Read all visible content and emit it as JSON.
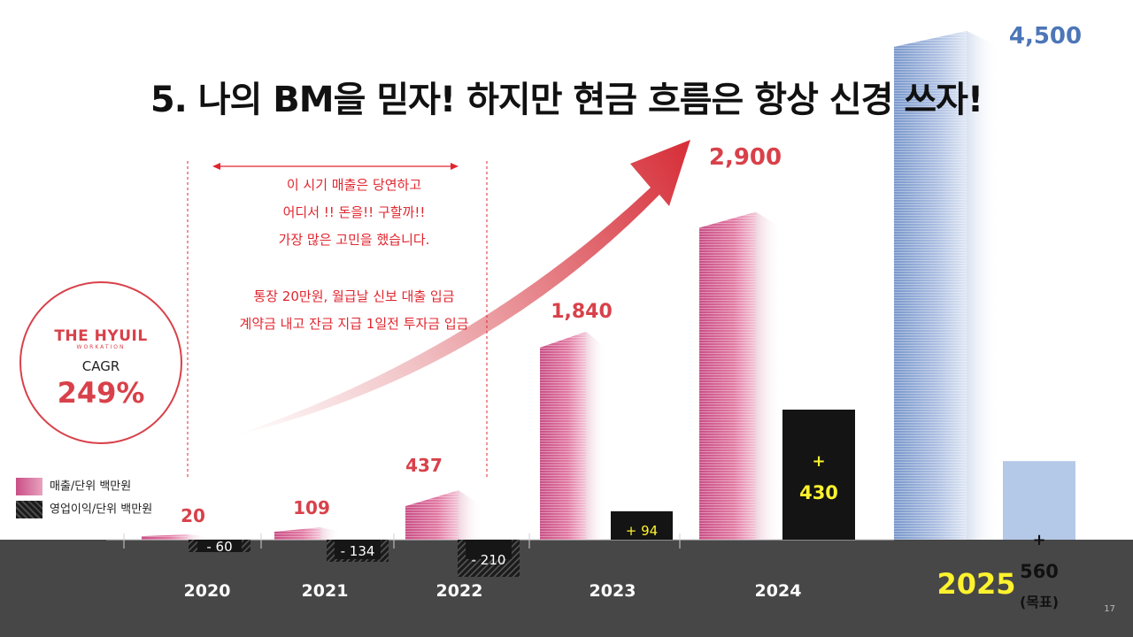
{
  "title": "5. 나의 BM을 믿자! 하지만 현금 흐름은 항상 신경 쓰자!",
  "story": {
    "lines_top": [
      "이 시기 매출은 당연하고",
      "어디서 !!  돈을!! 구할까!!",
      "가장 많은 고민을 했습니다."
    ],
    "lines_bottom": [
      "통장 20만원, 월급날 신보 대출 입금",
      "계약금 내고 잔금 지급 1일전 투자금 입금"
    ]
  },
  "cagr": {
    "brand": "THE HYUIL",
    "brand_sub": "WORKATION",
    "label": "CAGR",
    "value": "249%"
  },
  "legend": {
    "revenue": "매출/단위 백만원",
    "operating_profit": "영업이익/단위 백만원"
  },
  "page_number": "17",
  "chart_data": {
    "type": "bar",
    "categories": [
      "2020",
      "2021",
      "2022",
      "2023",
      "2024",
      "2025"
    ],
    "series": [
      {
        "name": "매출/단위 백만원",
        "values": [
          20,
          109,
          437,
          1840,
          2900,
          4500
        ],
        "labels": [
          "20",
          "109",
          "437",
          "1,840",
          "2,900",
          "4,500"
        ]
      },
      {
        "name": "영업이익/단위 백만원",
        "values": [
          -60,
          -134,
          -210,
          94,
          430,
          560
        ],
        "labels": [
          "- 60",
          "- 134",
          "- 210",
          "+ 94",
          "+ 430",
          "+ 560 (목표)"
        ]
      }
    ],
    "highlight_category": "2025",
    "colors": {
      "revenue": "#c94f86",
      "revenue_forecast": "#7a98cc",
      "op_positive": "#141414",
      "op_forecast": "#b4c8e8",
      "op_negative": "#1b1b1b",
      "axis_band": "#474747",
      "highlight_year": "#fdf22e",
      "op_value_text": "#fdf22e",
      "revenue_label": "#d8414a",
      "forecast_label": "#4d76b8",
      "growth_arrow": "#d7303a"
    }
  }
}
